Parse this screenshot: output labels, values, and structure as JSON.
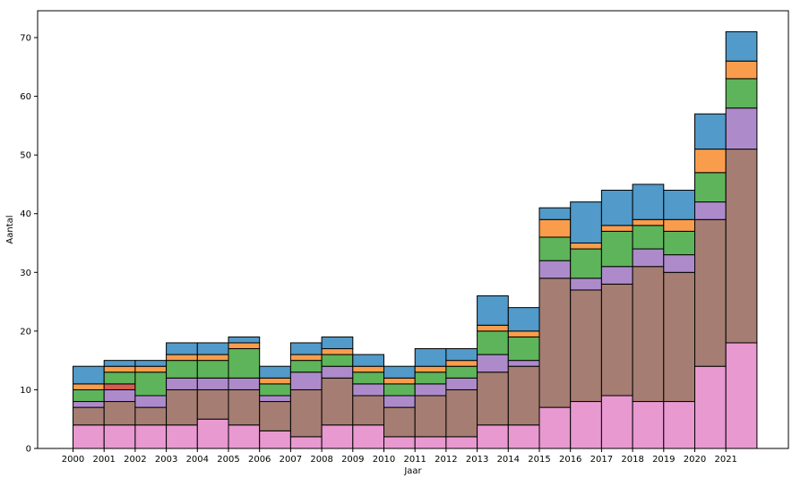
{
  "chart_data": {
    "type": "bar",
    "stacked": true,
    "histogram": true,
    "xlabel": "Jaar",
    "ylabel": "Aantal",
    "ylim": [
      0,
      74
    ],
    "yticks": [
      0,
      10,
      20,
      30,
      40,
      50,
      60,
      70
    ],
    "grid": false,
    "legend": "none",
    "categories": [
      "2000",
      "2001",
      "2002",
      "2003",
      "2004",
      "2005",
      "2006",
      "2007",
      "2008",
      "2009",
      "2010",
      "2011",
      "2012",
      "2013",
      "2014",
      "2015",
      "2016",
      "2017",
      "2018",
      "2019",
      "2020",
      "2021"
    ],
    "series": [
      {
        "color": "#e899d0",
        "values": [
          4,
          4,
          4,
          4,
          5,
          4,
          3,
          2,
          4,
          4,
          2,
          2,
          2,
          4,
          4,
          7,
          8,
          9,
          8,
          8,
          14,
          18
        ]
      },
      {
        "color": "#a57d72",
        "values": [
          3,
          4,
          3,
          6,
          5,
          6,
          5,
          8,
          8,
          5,
          5,
          7,
          8,
          9,
          10,
          22,
          19,
          19,
          23,
          22,
          25,
          33
        ]
      },
      {
        "color": "#ad8bcb",
        "values": [
          1,
          2,
          2,
          2,
          2,
          2,
          1,
          3,
          2,
          2,
          2,
          2,
          2,
          3,
          1,
          3,
          2,
          3,
          3,
          3,
          3,
          7
        ]
      },
      {
        "color": "#d95a50",
        "values": [
          0,
          1,
          0,
          0,
          0,
          0,
          0,
          0,
          0,
          0,
          0,
          0,
          0,
          0,
          0,
          0,
          0,
          0,
          0,
          0,
          0,
          0
        ]
      },
      {
        "color": "#5eb45a",
        "values": [
          2,
          2,
          4,
          3,
          3,
          5,
          2,
          2,
          2,
          2,
          2,
          2,
          2,
          4,
          4,
          4,
          5,
          6,
          4,
          4,
          5,
          5
        ]
      },
      {
        "color": "#f99d4c",
        "values": [
          1,
          1,
          1,
          1,
          1,
          1,
          1,
          1,
          1,
          1,
          1,
          1,
          1,
          1,
          1,
          3,
          1,
          1,
          1,
          2,
          4,
          3
        ]
      },
      {
        "color": "#519ac9",
        "values": [
          3,
          1,
          1,
          2,
          2,
          1,
          2,
          2,
          2,
          2,
          2,
          3,
          2,
          5,
          4,
          2,
          7,
          6,
          6,
          5,
          6,
          5
        ]
      }
    ]
  }
}
